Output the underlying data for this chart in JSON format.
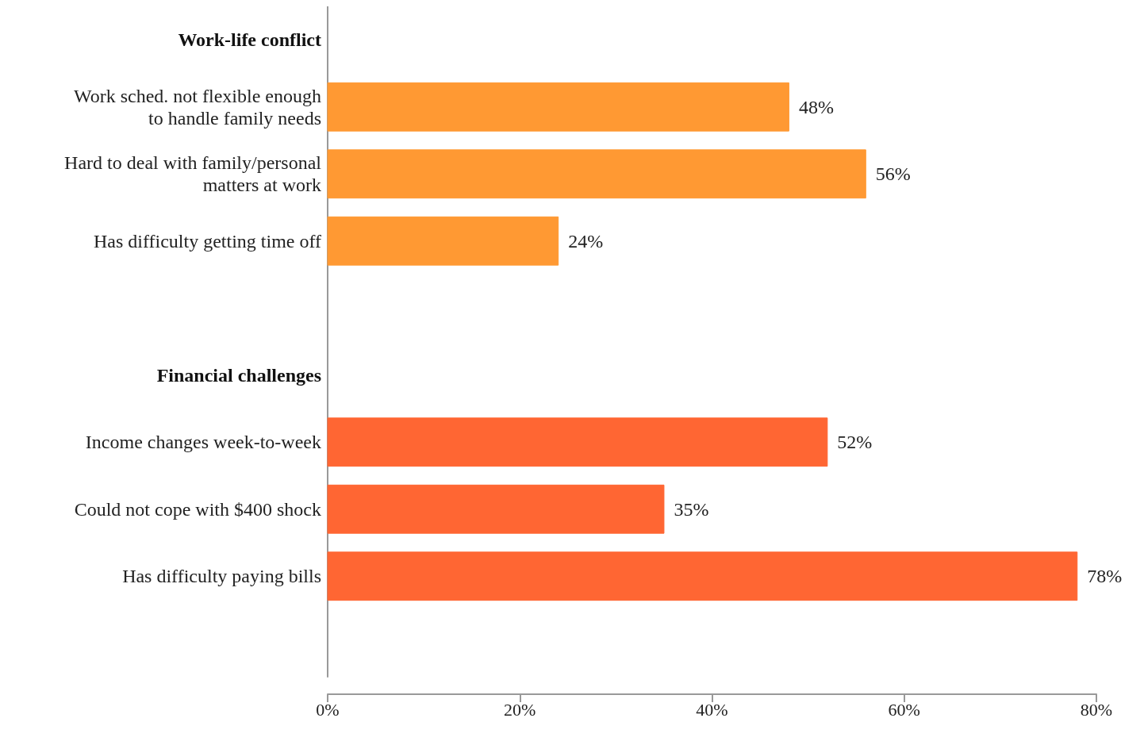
{
  "chart_data": {
    "type": "bar",
    "orientation": "horizontal",
    "categories": [
      "Work-life conflict",
      "Work sched. not flexible enough\nto handle family needs",
      "Hard to deal with family/personal\nmatters at work",
      "Has difficulty getting time off",
      null,
      "Financial challenges",
      "Income changes week-to-week",
      "Could not cope with $400 shock",
      "Has difficulty paying bills",
      null
    ],
    "values": [
      null,
      48,
      56,
      24,
      null,
      null,
      52,
      35,
      78,
      null
    ],
    "colors": [
      null,
      "#ff9933",
      "#ff9933",
      "#ff9933",
      null,
      null,
      "#ff6633",
      "#ff6633",
      "#ff6633",
      null
    ],
    "value_labels": [
      null,
      "48%",
      "56%",
      "24%",
      null,
      null,
      "52%",
      "35%",
      "78%",
      null
    ],
    "xlim": [
      0,
      80
    ],
    "xticks": [
      {
        "value": 0,
        "label": "0%"
      },
      {
        "value": 20,
        "label": "20%"
      },
      {
        "value": 40,
        "label": "40%"
      },
      {
        "value": 60,
        "label": "60%"
      },
      {
        "value": 80,
        "label": "80%"
      }
    ],
    "grid": false
  }
}
